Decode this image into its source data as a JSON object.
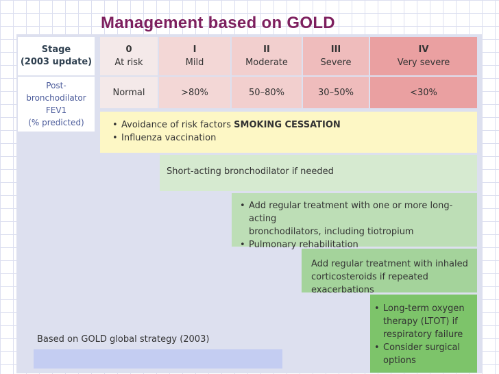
{
  "title": "Management based on GOLD",
  "colors": {
    "stage0": "#f4e9e9",
    "stage1": "#f3d7d6",
    "stage2": "#f2cfce",
    "stage3": "#efbcbc",
    "stage4": "#eaa0a1",
    "panel": "#dde0ef",
    "title": "#7d1f5e",
    "step1": "#fdf7c5",
    "step2": "#d6ead0",
    "step3": "#bddeb6",
    "step4": "#a4d39b",
    "step5": "#7dc46a"
  },
  "header": {
    "stage_label": [
      "Stage",
      "(2003 update)"
    ],
    "fev_label": [
      "Post-",
      "bronchodilator",
      "FEV1",
      "(% predicted)"
    ]
  },
  "stages": [
    {
      "num": "0",
      "name": "At risk",
      "fev": "Normal"
    },
    {
      "num": "I",
      "name": "Mild",
      "fev": ">80%"
    },
    {
      "num": "II",
      "name": "Moderate",
      "fev": "50–80%"
    },
    {
      "num": "III",
      "name": "Severe",
      "fev": "30–50%"
    },
    {
      "num": "IV",
      "name": "Very severe",
      "fev": "<30%"
    }
  ],
  "management": {
    "step1": {
      "bullet1_text": "Avoidance of risk factors ",
      "bullet1_bold": "SMOKING CESSATION",
      "bullet2": "Influenza vaccination"
    },
    "step2": {
      "text": "Short-acting bronchodilator if needed"
    },
    "step3": {
      "bullet1_line1": "Add regular treatment with one or more long-acting",
      "bullet1_line2": "bronchodilators, including tiotropium",
      "bullet2": "Pulmonary rehabilitation"
    },
    "step4": {
      "line1": "Add regular treatment with inhaled",
      "line2": "corticosteroids if repeated exacerbations"
    },
    "step5": {
      "bullet1_line1": "Long-term oxygen",
      "bullet1_line2": "therapy (LTOT) if",
      "bullet1_line3": "respiratory failure",
      "bullet2_line1": "Consider surgical",
      "bullet2_line2": "options"
    }
  },
  "footnote": "Based on GOLD global strategy (2003)"
}
